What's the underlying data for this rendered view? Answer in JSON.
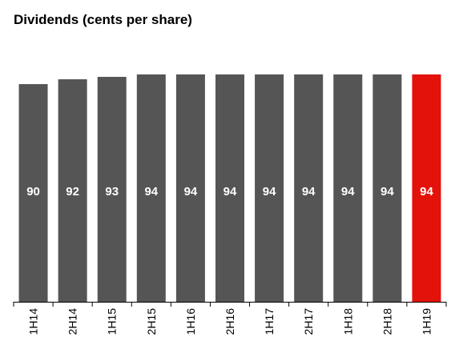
{
  "chart_data": {
    "type": "bar",
    "title": "Dividends (cents per share)",
    "xlabel": "",
    "ylabel": "",
    "categories": [
      "1H14",
      "2H14",
      "1H15",
      "2H15",
      "1H16",
      "2H16",
      "1H17",
      "2H17",
      "1H18",
      "2H18",
      "1H19"
    ],
    "values": [
      90,
      92,
      93,
      94,
      94,
      94,
      94,
      94,
      94,
      94,
      94
    ],
    "ylim": [
      0,
      94
    ],
    "grid": false,
    "colors": {
      "default": "#555555",
      "highlight": "#e3120b"
    },
    "highlight_index": 10
  }
}
